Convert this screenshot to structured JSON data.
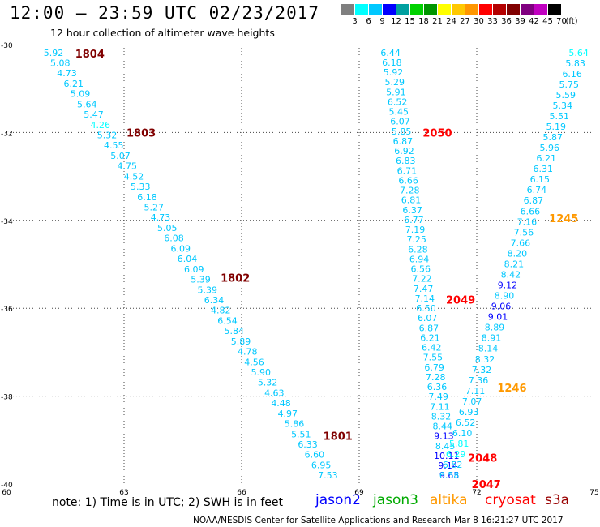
{
  "header": {
    "title": "12:00 – 23:59 UTC 02/23/2017",
    "subtitle": "12 hour collection of altimeter wave heights"
  },
  "scale": {
    "colors": [
      "#7f7f7f",
      "#00ffff",
      "#00c8ff",
      "#0000ff",
      "#00a0a0",
      "#00d200",
      "#009600",
      "#ffff00",
      "#ffc800",
      "#ff9600",
      "#ff0000",
      "#b40000",
      "#800000",
      "#800080",
      "#c000c0",
      "#000000"
    ],
    "labels": [
      "3",
      "6",
      "9",
      "12",
      "15",
      "18",
      "21",
      "24",
      "27",
      "30",
      "33",
      "36",
      "39",
      "42",
      "45",
      "70"
    ],
    "unit": "(ft)"
  },
  "footer": {
    "note": "note:  1) Time is in UTC;  2) SWH is in feet",
    "credit": "NOAA/NESDIS Center for Satellite Applications and Research",
    "timestamp": "Mar  8 16:21:27 UTC 2017",
    "satellites": [
      {
        "name": "jason2",
        "color": "#0000ff"
      },
      {
        "name": "jason3",
        "color": "#00aa00"
      },
      {
        "name": "altika",
        "color": "#ff9900"
      },
      {
        "name": "cryosat",
        "color": "#ff0000"
      },
      {
        "name": "s3a",
        "color": "#990000"
      }
    ]
  },
  "chart_data": {
    "type": "scatter",
    "title": "12:00 – 23:59 UTC 02/23/2017",
    "subtitle": "12 hour collection of altimeter wave heights",
    "xlim": [
      60,
      75
    ],
    "ylim": [
      -40,
      -30
    ],
    "x_ticks": [
      "60",
      "63",
      "66",
      "69",
      "72",
      "75"
    ],
    "y_ticks": [
      "-30",
      "-32",
      "-34",
      "-36",
      "-38",
      "-40"
    ],
    "grid": true,
    "tracks": [
      {
        "x0": 61.2,
        "x1": 68.2,
        "time_labels": [
          {
            "text": "1804",
            "lat": -30.2,
            "color": "#800000"
          },
          {
            "text": "1803",
            "lat": -32.0,
            "color": "#800000"
          },
          {
            "text": "1802",
            "lat": -35.3,
            "color": "#800000"
          },
          {
            "text": "1801",
            "lat": -38.9,
            "color": "#800000"
          }
        ],
        "values": [
          {
            "v": "5.92",
            "c": "#00c8ff"
          },
          {
            "v": "5.08",
            "c": "#00c8ff"
          },
          {
            "v": "4.73",
            "c": "#00c8ff"
          },
          {
            "v": "6.21",
            "c": "#00c8ff"
          },
          {
            "v": "5.09",
            "c": "#00c8ff"
          },
          {
            "v": "5.64",
            "c": "#00c8ff"
          },
          {
            "v": "5.47",
            "c": "#00c8ff"
          },
          {
            "v": "4.26",
            "c": "#00ffff"
          },
          {
            "v": "5.32",
            "c": "#00c8ff"
          },
          {
            "v": "4.55",
            "c": "#00c8ff"
          },
          {
            "v": "5.07",
            "c": "#00c8ff"
          },
          {
            "v": "4.75",
            "c": "#00c8ff"
          },
          {
            "v": "4.52",
            "c": "#00c8ff"
          },
          {
            "v": "5.33",
            "c": "#00c8ff"
          },
          {
            "v": "6.18",
            "c": "#00c8ff"
          },
          {
            "v": "5.27",
            "c": "#00c8ff"
          },
          {
            "v": "4.73",
            "c": "#00c8ff"
          },
          {
            "v": "5.05",
            "c": "#00c8ff"
          },
          {
            "v": "6.08",
            "c": "#00c8ff"
          },
          {
            "v": "6.09",
            "c": "#00c8ff"
          },
          {
            "v": "6.04",
            "c": "#00c8ff"
          },
          {
            "v": "6.09",
            "c": "#00c8ff"
          },
          {
            "v": "5.39",
            "c": "#00c8ff"
          },
          {
            "v": "5.39",
            "c": "#00c8ff"
          },
          {
            "v": "6.34",
            "c": "#00c8ff"
          },
          {
            "v": "4.82",
            "c": "#00c8ff"
          },
          {
            "v": "6.54",
            "c": "#00c8ff"
          },
          {
            "v": "5.84",
            "c": "#00c8ff"
          },
          {
            "v": "5.89",
            "c": "#00c8ff"
          },
          {
            "v": "4.78",
            "c": "#00c8ff"
          },
          {
            "v": "4.56",
            "c": "#00c8ff"
          },
          {
            "v": "5.90",
            "c": "#00c8ff"
          },
          {
            "v": "5.32",
            "c": "#00c8ff"
          },
          {
            "v": "4.63",
            "c": "#00c8ff"
          },
          {
            "v": "4.48",
            "c": "#00c8ff"
          },
          {
            "v": "4.97",
            "c": "#00c8ff"
          },
          {
            "v": "5.86",
            "c": "#00c8ff"
          },
          {
            "v": "5.51",
            "c": "#00c8ff"
          },
          {
            "v": "6.33",
            "c": "#00c8ff"
          },
          {
            "v": "6.60",
            "c": "#00c8ff"
          },
          {
            "v": "6.95",
            "c": "#00c8ff"
          },
          {
            "v": "7.53",
            "c": "#00c8ff"
          }
        ]
      },
      {
        "x0": 69.8,
        "x1": 71.3,
        "time_labels": [
          {
            "text": "2050",
            "lat": -32.0,
            "color": "#ff0000"
          },
          {
            "text": "2049",
            "lat": -35.8,
            "color": "#ff0000"
          },
          {
            "text": "2048",
            "lat": -39.4,
            "color": "#ff0000"
          },
          {
            "text": "2047",
            "lat": -40.0,
            "color": "#ff0000"
          }
        ],
        "values": [
          {
            "v": "6.44",
            "c": "#00c8ff"
          },
          {
            "v": "6.18",
            "c": "#00c8ff"
          },
          {
            "v": "5.92",
            "c": "#00c8ff"
          },
          {
            "v": "5.29",
            "c": "#00c8ff"
          },
          {
            "v": "5.91",
            "c": "#00c8ff"
          },
          {
            "v": "6.52",
            "c": "#00c8ff"
          },
          {
            "v": "5.45",
            "c": "#00c8ff"
          },
          {
            "v": "6.07",
            "c": "#00c8ff"
          },
          {
            "v": "5.85",
            "c": "#00c8ff"
          },
          {
            "v": "6.87",
            "c": "#00c8ff"
          },
          {
            "v": "6.92",
            "c": "#00c8ff"
          },
          {
            "v": "6.83",
            "c": "#00c8ff"
          },
          {
            "v": "6.71",
            "c": "#00c8ff"
          },
          {
            "v": "6.66",
            "c": "#00c8ff"
          },
          {
            "v": "7.28",
            "c": "#00c8ff"
          },
          {
            "v": "6.81",
            "c": "#00c8ff"
          },
          {
            "v": "6.37",
            "c": "#00c8ff"
          },
          {
            "v": "6.77",
            "c": "#00c8ff"
          },
          {
            "v": "7.19",
            "c": "#00c8ff"
          },
          {
            "v": "7.25",
            "c": "#00c8ff"
          },
          {
            "v": "6.28",
            "c": "#00c8ff"
          },
          {
            "v": "6.94",
            "c": "#00c8ff"
          },
          {
            "v": "6.56",
            "c": "#00c8ff"
          },
          {
            "v": "7.22",
            "c": "#00c8ff"
          },
          {
            "v": "7.47",
            "c": "#00c8ff"
          },
          {
            "v": "7.14",
            "c": "#00c8ff"
          },
          {
            "v": "6.50",
            "c": "#00c8ff"
          },
          {
            "v": "6.07",
            "c": "#00c8ff"
          },
          {
            "v": "6.87",
            "c": "#00c8ff"
          },
          {
            "v": "6.21",
            "c": "#00c8ff"
          },
          {
            "v": "6.42",
            "c": "#00c8ff"
          },
          {
            "v": "7.55",
            "c": "#00c8ff"
          },
          {
            "v": "6.79",
            "c": "#00c8ff"
          },
          {
            "v": "7.28",
            "c": "#00c8ff"
          },
          {
            "v": "6.36",
            "c": "#00c8ff"
          },
          {
            "v": "7.49",
            "c": "#00c8ff"
          },
          {
            "v": "7.11",
            "c": "#00c8ff"
          },
          {
            "v": "8.32",
            "c": "#00c8ff"
          },
          {
            "v": "8.44",
            "c": "#00c8ff"
          },
          {
            "v": "9.13",
            "c": "#0000ff"
          },
          {
            "v": "8.45",
            "c": "#00c8ff"
          },
          {
            "v": "10.11",
            "c": "#0000ff"
          },
          {
            "v": "9.14",
            "c": "#0000ff"
          },
          {
            "v": "9.65",
            "c": "#0000ff"
          }
        ]
      },
      {
        "x0": 74.6,
        "x1": 71.3,
        "time_labels": [
          {
            "text": "1245",
            "lat": -33.95,
            "color": "#ff9900"
          },
          {
            "text": "1246",
            "lat": -37.8,
            "color": "#ff9900"
          }
        ],
        "values": [
          {
            "v": "5.64",
            "c": "#00ffff"
          },
          {
            "v": "5.83",
            "c": "#00c8ff"
          },
          {
            "v": "6.16",
            "c": "#00c8ff"
          },
          {
            "v": "5.75",
            "c": "#00c8ff"
          },
          {
            "v": "5.59",
            "c": "#00c8ff"
          },
          {
            "v": "5.34",
            "c": "#00c8ff"
          },
          {
            "v": "5.51",
            "c": "#00c8ff"
          },
          {
            "v": "5.19",
            "c": "#00c8ff"
          },
          {
            "v": "5.87",
            "c": "#00c8ff"
          },
          {
            "v": "5.96",
            "c": "#00c8ff"
          },
          {
            "v": "6.21",
            "c": "#00c8ff"
          },
          {
            "v": "6.31",
            "c": "#00c8ff"
          },
          {
            "v": "6.15",
            "c": "#00c8ff"
          },
          {
            "v": "6.74",
            "c": "#00c8ff"
          },
          {
            "v": "6.87",
            "c": "#00c8ff"
          },
          {
            "v": "6.66",
            "c": "#00c8ff"
          },
          {
            "v": "7.16",
            "c": "#00c8ff"
          },
          {
            "v": "7.56",
            "c": "#00c8ff"
          },
          {
            "v": "7.66",
            "c": "#00c8ff"
          },
          {
            "v": "8.20",
            "c": "#00c8ff"
          },
          {
            "v": "8.21",
            "c": "#00c8ff"
          },
          {
            "v": "8.42",
            "c": "#00c8ff"
          },
          {
            "v": "9.12",
            "c": "#0000ff"
          },
          {
            "v": "8.90",
            "c": "#00c8ff"
          },
          {
            "v": "9.06",
            "c": "#0000ff"
          },
          {
            "v": "9.01",
            "c": "#0000ff"
          },
          {
            "v": "8.89",
            "c": "#00c8ff"
          },
          {
            "v": "8.91",
            "c": "#00c8ff"
          },
          {
            "v": "8.14",
            "c": "#00c8ff"
          },
          {
            "v": "8.32",
            "c": "#00c8ff"
          },
          {
            "v": "7.32",
            "c": "#00c8ff"
          },
          {
            "v": "7.36",
            "c": "#00c8ff"
          },
          {
            "v": "7.11",
            "c": "#00c8ff"
          },
          {
            "v": "7.07",
            "c": "#00c8ff"
          },
          {
            "v": "6.93",
            "c": "#00c8ff"
          },
          {
            "v": "6.52",
            "c": "#00c8ff"
          },
          {
            "v": "6.10",
            "c": "#00c8ff"
          },
          {
            "v": "5.81",
            "c": "#00ffff"
          },
          {
            "v": "6.29",
            "c": "#00ffff"
          },
          {
            "v": "6.52",
            "c": "#00c8ff"
          },
          {
            "v": "6.58",
            "c": "#00c8ff"
          }
        ]
      }
    ]
  }
}
